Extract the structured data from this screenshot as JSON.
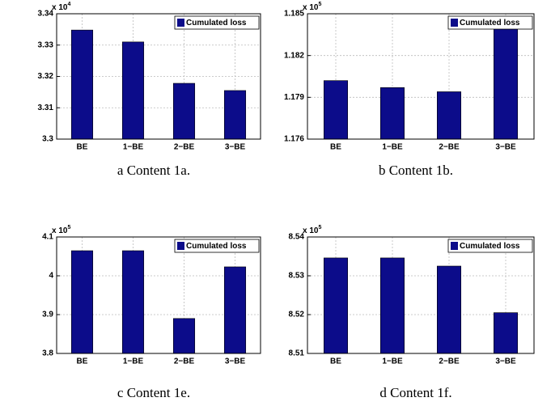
{
  "chart_data": [
    {
      "type": "bar",
      "caption": "a Content 1a.",
      "y_multiplier": "x 10",
      "y_multiplier_exp": "4",
      "categories": [
        "BE",
        "1−BE",
        "2−BE",
        "3−BE"
      ],
      "series": [
        {
          "name": "Cumulated loss",
          "color": "#0c0c8a",
          "values": [
            3.3348,
            3.331,
            3.3178,
            3.3155
          ]
        }
      ],
      "ylim": [
        3.3,
        3.34
      ],
      "yticks": [
        3.3,
        3.31,
        3.32,
        3.33,
        3.34
      ],
      "grid": true,
      "legend": "top-right"
    },
    {
      "type": "bar",
      "caption": "b Content 1b.",
      "y_multiplier": "x 10",
      "y_multiplier_exp": "5",
      "categories": [
        "BE",
        "1−BE",
        "2−BE",
        "3−BE"
      ],
      "series": [
        {
          "name": "Cumulated loss",
          "color": "#0c0c8a",
          "values": [
            1.1802,
            1.1797,
            1.1794,
            1.1848
          ]
        }
      ],
      "ylim": [
        1.176,
        1.185
      ],
      "yticks": [
        1.176,
        1.179,
        1.182,
        1.185
      ],
      "grid": true,
      "legend": "top-right"
    },
    {
      "type": "bar",
      "caption": "c Content 1e.",
      "y_multiplier": "x 10",
      "y_multiplier_exp": "5",
      "categories": [
        "BE",
        "1−BE",
        "2−BE",
        "3−BE"
      ],
      "series": [
        {
          "name": "Cumulated loss",
          "color": "#0c0c8a",
          "values": [
            4.0646,
            4.0646,
            3.89,
            4.023
          ]
        }
      ],
      "ylim": [
        3.8,
        4.1
      ],
      "yticks": [
        3.8,
        3.9,
        4,
        4.1
      ],
      "grid": true,
      "legend": "top-right"
    },
    {
      "type": "bar",
      "caption": "d Content 1f.",
      "y_multiplier": "x 10",
      "y_multiplier_exp": "5",
      "categories": [
        "BE",
        "1−BE",
        "2−BE",
        "3−BE"
      ],
      "series": [
        {
          "name": "Cumulated loss",
          "color": "#0c0c8a",
          "values": [
            8.5346,
            8.5346,
            8.5325,
            8.5205
          ]
        }
      ],
      "ylim": [
        8.51,
        8.54
      ],
      "yticks": [
        8.51,
        8.52,
        8.53,
        8.54
      ],
      "grid": true,
      "legend": "top-right"
    }
  ]
}
